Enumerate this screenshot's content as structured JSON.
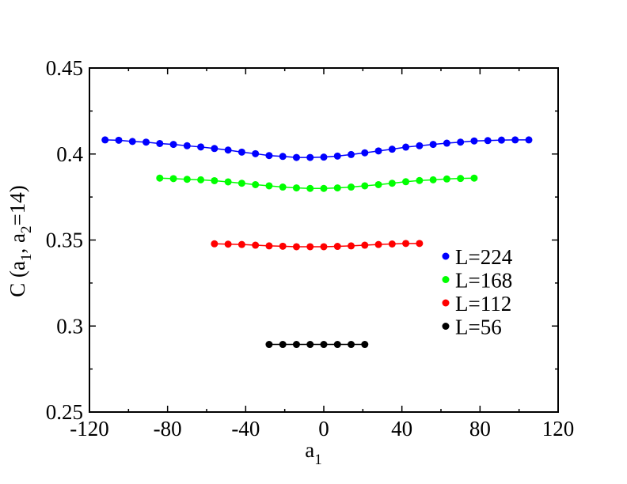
{
  "chart_data": {
    "type": "line",
    "xlabel": "a",
    "xlabel_sub": "1",
    "ylabel": {
      "p1": "C (a",
      "s1": "1",
      "p2": ", a",
      "s2": "2",
      "p3": "=14)"
    },
    "xlim": [
      -120,
      120
    ],
    "ylim": [
      0.25,
      0.45
    ],
    "xticks": [
      -120,
      -80,
      -40,
      0,
      40,
      80,
      120
    ],
    "xtick_labels": [
      "-120",
      "-80",
      "-40",
      "0",
      "40",
      "80",
      "120"
    ],
    "yticks": [
      0.25,
      0.3,
      0.35,
      0.4,
      0.45
    ],
    "ytick_labels": [
      "0.25",
      "0.3",
      "0.35",
      "0.4",
      "0.45"
    ],
    "grid": false,
    "legend_position": "right",
    "series": [
      {
        "name": "L=224",
        "color": "#0000ff",
        "x": [
          -112,
          -105,
          -98,
          -91,
          -84,
          -77,
          -70,
          -63,
          -56,
          -49,
          -42,
          -35,
          -28,
          -21,
          -14,
          -7,
          0,
          7,
          14,
          21,
          28,
          35,
          42,
          49,
          56,
          63,
          70,
          77,
          84,
          91,
          98,
          105
        ],
        "y": [
          0.4082,
          0.408,
          0.4073,
          0.4069,
          0.4061,
          0.4056,
          0.4048,
          0.4041,
          0.4032,
          0.4023,
          0.4011,
          0.4002,
          0.3991,
          0.3986,
          0.398,
          0.398,
          0.3982,
          0.3988,
          0.3997,
          0.4007,
          0.4018,
          0.4028,
          0.404,
          0.4048,
          0.4056,
          0.4063,
          0.4069,
          0.4076,
          0.4078,
          0.4081,
          0.4082,
          0.4082
        ]
      },
      {
        "name": "L=168",
        "color": "#00ff00",
        "x": [
          -84,
          -77,
          -70,
          -63,
          -56,
          -49,
          -42,
          -35,
          -28,
          -21,
          -14,
          -7,
          0,
          7,
          14,
          21,
          28,
          35,
          42,
          49,
          56,
          63,
          70,
          77
        ],
        "y": [
          0.386,
          0.3857,
          0.3853,
          0.385,
          0.3845,
          0.3838,
          0.383,
          0.3822,
          0.3815,
          0.3808,
          0.3803,
          0.38,
          0.38,
          0.3803,
          0.3808,
          0.3815,
          0.3822,
          0.383,
          0.3839,
          0.3846,
          0.385,
          0.3855,
          0.3858,
          0.386
        ]
      },
      {
        "name": "L=112",
        "color": "#ff0000",
        "x": [
          -56,
          -49,
          -42,
          -35,
          -28,
          -21,
          -14,
          -7,
          0,
          7,
          14,
          21,
          28,
          35,
          42,
          49
        ],
        "y": [
          0.3478,
          0.3476,
          0.3474,
          0.347,
          0.3466,
          0.3464,
          0.3461,
          0.3461,
          0.3461,
          0.3463,
          0.3466,
          0.347,
          0.3474,
          0.3477,
          0.348,
          0.348
        ]
      },
      {
        "name": "L=56",
        "color": "#000000",
        "x": [
          -28,
          -21,
          -14,
          -7,
          0,
          7,
          14,
          21
        ],
        "y": [
          0.2893,
          0.2893,
          0.2893,
          0.2893,
          0.2893,
          0.2893,
          0.2893,
          0.2893
        ]
      }
    ]
  }
}
